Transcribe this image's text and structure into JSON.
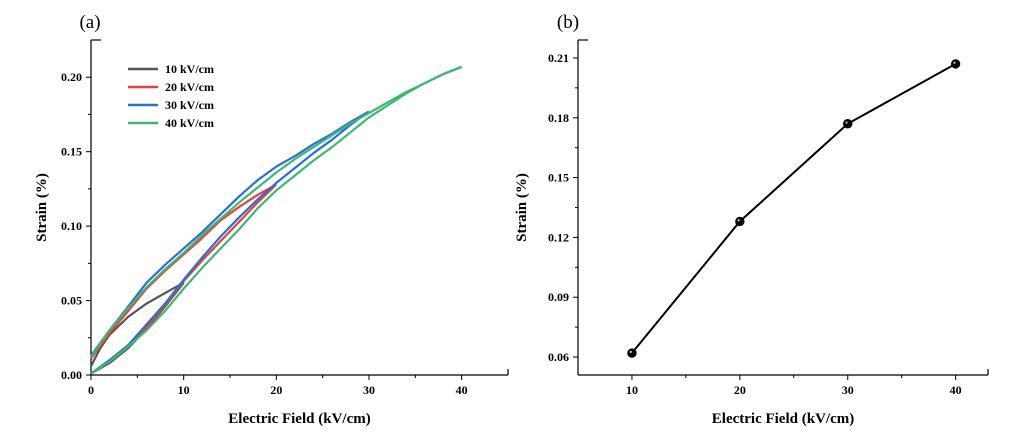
{
  "chart_data": [
    {
      "panel": "(a)",
      "type": "line",
      "xlabel": "Electric Field (kV/cm)",
      "ylabel": "Strain (%)",
      "xlim": [
        0,
        45
      ],
      "ylim": [
        0,
        0.225
      ],
      "xticks": [
        "0",
        "10",
        "20",
        "30",
        "40"
      ],
      "yticks": [
        "0.00",
        "0.05",
        "0.10",
        "0.15",
        "0.20"
      ],
      "grid": false,
      "legend_position": "top-left",
      "series": [
        {
          "name": "10 kV/cm",
          "color": "#555555",
          "upper": {
            "x": [
              0,
              1,
              2,
              4,
              6,
              8,
              10
            ],
            "y": [
              0.006,
              0.018,
              0.027,
              0.039,
              0.048,
              0.055,
              0.062
            ]
          },
          "lower": {
            "x": [
              0,
              2,
              4,
              6,
              8,
              10
            ],
            "y": [
              0.001,
              0.008,
              0.018,
              0.031,
              0.046,
              0.062
            ]
          }
        },
        {
          "name": "20 kV/cm",
          "color": "#e8403a",
          "upper": {
            "x": [
              0,
              2,
              4,
              6,
              8,
              10,
              12,
              14,
              16,
              18,
              20
            ],
            "y": [
              0.011,
              0.028,
              0.043,
              0.058,
              0.07,
              0.081,
              0.092,
              0.104,
              0.113,
              0.121,
              0.128
            ]
          },
          "lower": {
            "x": [
              0,
              2,
              4,
              6,
              8,
              10,
              12,
              14,
              16,
              18,
              20
            ],
            "y": [
              0.001,
              0.009,
              0.019,
              0.032,
              0.047,
              0.063,
              0.077,
              0.09,
              0.103,
              0.116,
              0.128
            ]
          }
        },
        {
          "name": "30 kV/cm",
          "color": "#2b6fd6",
          "upper": {
            "x": [
              0,
              2,
              4,
              6,
              8,
              10,
              12,
              14,
              16,
              18,
              20,
              22,
              24,
              26,
              28,
              30
            ],
            "y": [
              0.013,
              0.03,
              0.046,
              0.062,
              0.074,
              0.085,
              0.096,
              0.108,
              0.12,
              0.131,
              0.14,
              0.147,
              0.155,
              0.162,
              0.17,
              0.177
            ]
          },
          "lower": {
            "x": [
              0,
              2,
              4,
              6,
              8,
              10,
              12,
              14,
              16,
              18,
              20,
              22,
              24,
              26,
              28,
              30
            ],
            "y": [
              0.001,
              0.01,
              0.02,
              0.034,
              0.048,
              0.064,
              0.079,
              0.093,
              0.106,
              0.118,
              0.129,
              0.139,
              0.149,
              0.158,
              0.168,
              0.177
            ]
          }
        },
        {
          "name": "40 kV/cm",
          "color": "#3db872",
          "upper": {
            "x": [
              0,
              2,
              4,
              6,
              8,
              10,
              12,
              14,
              16,
              18,
              20,
              22,
              24,
              26,
              28,
              30,
              32,
              34,
              36,
              38,
              40
            ],
            "y": [
              0.012,
              0.03,
              0.045,
              0.059,
              0.071,
              0.082,
              0.094,
              0.105,
              0.116,
              0.126,
              0.136,
              0.145,
              0.153,
              0.161,
              0.169,
              0.176,
              0.183,
              0.19,
              0.196,
              0.202,
              0.207
            ]
          },
          "lower": {
            "x": [
              0,
              2,
              4,
              6,
              8,
              10,
              12,
              14,
              16,
              18,
              20,
              22,
              24,
              26,
              28,
              30,
              32,
              34,
              36,
              38,
              40
            ],
            "y": [
              0.001,
              0.009,
              0.019,
              0.03,
              0.043,
              0.058,
              0.072,
              0.085,
              0.098,
              0.112,
              0.124,
              0.134,
              0.144,
              0.153,
              0.163,
              0.173,
              0.181,
              0.189,
              0.196,
              0.202,
              0.207
            ]
          }
        }
      ]
    },
    {
      "panel": "(b)",
      "type": "line",
      "xlabel": "Electric Field (kV/cm)",
      "ylabel": "Strain (%)",
      "xlim": [
        5,
        43
      ],
      "ylim": [
        0.051,
        0.219
      ],
      "xticks": [
        "10",
        "20",
        "30",
        "40"
      ],
      "yticks": [
        "0.06",
        "0.09",
        "0.12",
        "0.15",
        "0.18",
        "0.21"
      ],
      "grid": false,
      "marker": "circle",
      "color": "#000000",
      "x": [
        10,
        20,
        30,
        40
      ],
      "y": [
        0.062,
        0.128,
        0.177,
        0.207
      ]
    }
  ]
}
